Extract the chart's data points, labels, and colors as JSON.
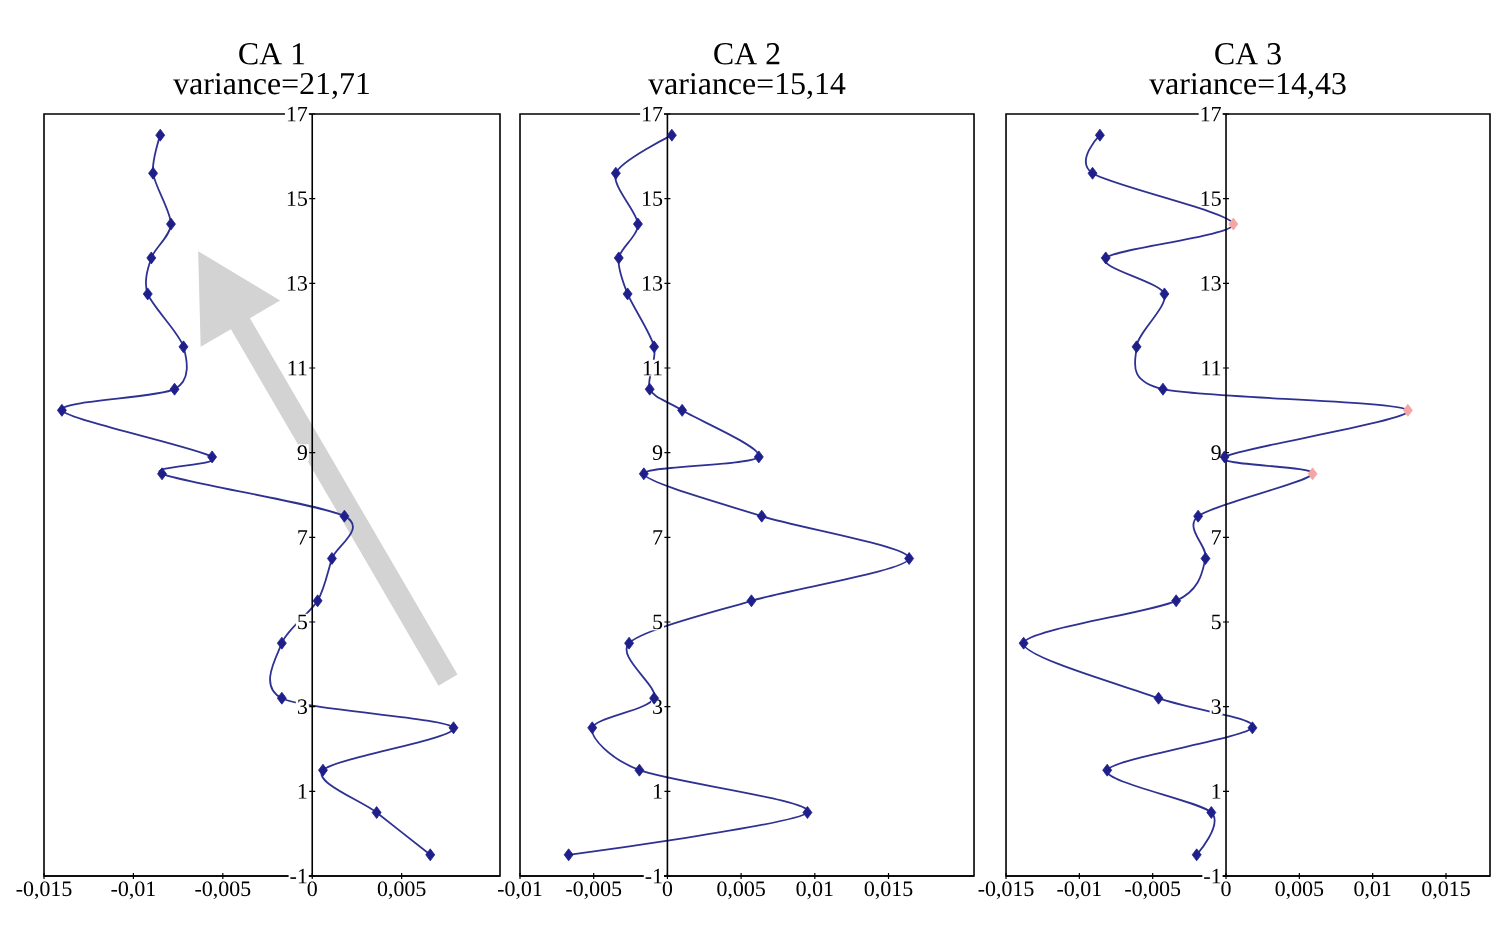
{
  "chart_data": [
    {
      "type": "line",
      "title": "CA 1",
      "subtitle": "variance=21,71",
      "marker": "diamond",
      "line_style": "solid",
      "grid": false,
      "series": [
        {
          "color": "#2e3192",
          "colors": [
            "#1f1f8c",
            "#1f1f8c",
            "#1f1f8c",
            "#1f1f8c",
            "#1f1f8c",
            "#1f1f8c",
            "#1f1f8c",
            "#1f1f8c",
            "#1f1f8c",
            "#1f1f8c",
            "#1f1f8c",
            "#1f1f8c",
            "#1f1f8c",
            "#1f1f8c",
            "#1f1f8c",
            "#1f1f8c",
            "#1f1f8c",
            "#1f1f8c",
            "#1f1f8c"
          ],
          "x": [
            0.0066,
            0.0036,
            0.0006,
            0.0079,
            -0.0017,
            -0.0017,
            0.0003,
            0.0011,
            0.0018,
            -0.0084,
            -0.0056,
            -0.014,
            -0.0077,
            -0.0072,
            -0.0092,
            -0.009,
            -0.0079,
            -0.0089,
            -0.0085
          ],
          "values": [
            -0.5,
            0.5,
            1.5,
            2.5,
            3.2,
            4.5,
            5.5,
            6.5,
            7.5,
            8.5,
            8.9,
            10,
            10.5,
            11.5,
            12.75,
            13.6,
            14.4,
            15.6,
            16.5
          ]
        }
      ],
      "xlim": [
        -0.015,
        0.0105
      ],
      "xticks": [
        {
          "value": -0.015,
          "label": "-0,015"
        },
        {
          "value": -0.01,
          "label": "-0,01"
        },
        {
          "value": -0.005,
          "label": "-0,005"
        },
        {
          "value": 0,
          "label": "0"
        },
        {
          "value": 0.005,
          "label": "0,005"
        }
      ],
      "ylim": [
        -1,
        17
      ],
      "yticks": [
        -1,
        1,
        3,
        5,
        7,
        9,
        11,
        13,
        15,
        17
      ]
    },
    {
      "type": "line",
      "title": "CA 2",
      "subtitle": "variance=15,14",
      "marker": "diamond",
      "line_style": "solid",
      "grid": false,
      "series": [
        {
          "color": "#2e3192",
          "colors": [
            "#1f1f8c",
            "#1f1f8c",
            "#1f1f8c",
            "#1f1f8c",
            "#1f1f8c",
            "#1f1f8c",
            "#1f1f8c",
            "#1f1f8c",
            "#1f1f8c",
            "#1f1f8c",
            "#1f1f8c",
            "#1f1f8c",
            "#1f1f8c",
            "#1f1f8c",
            "#1f1f8c",
            "#1f1f8c",
            "#1f1f8c",
            "#1f1f8c",
            "#1f1f8c"
          ],
          "x": [
            -0.0067,
            0.0095,
            -0.0019,
            -0.0051,
            -0.0009,
            -0.0026,
            0.0057,
            0.0164,
            0.0064,
            -0.0016,
            0.0062,
            0.001,
            -0.0012,
            -0.0009,
            -0.0027,
            -0.0033,
            -0.002,
            -0.0035,
            0.0003
          ],
          "values": [
            -0.5,
            0.5,
            1.5,
            2.5,
            3.2,
            4.5,
            5.5,
            6.5,
            7.5,
            8.5,
            8.9,
            10,
            10.5,
            11.5,
            12.75,
            13.6,
            14.4,
            15.6,
            16.5
          ]
        }
      ],
      "xlim": [
        -0.01,
        0.0208
      ],
      "xticks": [
        {
          "value": -0.01,
          "label": "-0,01"
        },
        {
          "value": -0.005,
          "label": "-0,005"
        },
        {
          "value": 0,
          "label": "0"
        },
        {
          "value": 0.005,
          "label": "0,005"
        },
        {
          "value": 0.01,
          "label": "0,01"
        },
        {
          "value": 0.015,
          "label": "0,015"
        }
      ],
      "ylim": [
        -1,
        17
      ],
      "yticks": [
        -1,
        1,
        3,
        5,
        7,
        9,
        11,
        13,
        15,
        17
      ]
    },
    {
      "type": "line",
      "title": "CA 3",
      "subtitle": "variance=14,43",
      "marker": "diamond",
      "line_style": "solid",
      "grid": false,
      "series": [
        {
          "color": "#2e3192",
          "colors": [
            "#1f1f8c",
            "#1f1f8c",
            "#1f1f8c",
            "#1f1f8c",
            "#1f1f8c",
            "#1f1f8c",
            "#1f1f8c",
            "#1f1f8c",
            "#1f1f8c",
            "#f4a6a6",
            "#1f1f8c",
            "#f4a6a6",
            "#1f1f8c",
            "#1f1f8c",
            "#1f1f8c",
            "#1f1f8c",
            "#f4a6a6",
            "#1f1f8c",
            "#1f1f8c"
          ],
          "x": [
            -0.002,
            -0.001,
            -0.0081,
            0.0018,
            -0.0046,
            -0.0138,
            -0.0034,
            -0.0014,
            -0.0019,
            0.0059,
            -0.0001,
            0.0124,
            -0.0043,
            -0.0061,
            -0.0042,
            -0.0082,
            0.0005,
            -0.0091,
            -0.0086
          ],
          "values": [
            -0.5,
            0.5,
            1.5,
            2.5,
            3.2,
            4.5,
            5.5,
            6.5,
            7.5,
            8.5,
            8.9,
            10,
            10.5,
            11.5,
            12.75,
            13.6,
            14.4,
            15.6,
            16.5
          ]
        }
      ],
      "xlim": [
        -0.015,
        0.018
      ],
      "xticks": [
        {
          "value": -0.015,
          "label": "-0,015"
        },
        {
          "value": -0.01,
          "label": "-0,01"
        },
        {
          "value": -0.005,
          "label": "-0,005"
        },
        {
          "value": 0,
          "label": "0"
        },
        {
          "value": 0.005,
          "label": "0,005"
        },
        {
          "value": 0.01,
          "label": "0,01"
        },
        {
          "value": 0.015,
          "label": "0,015"
        }
      ],
      "ylim": [
        -1,
        17
      ],
      "yticks": [
        -1,
        1,
        3,
        5,
        7,
        9,
        11,
        13,
        15,
        17
      ]
    }
  ]
}
